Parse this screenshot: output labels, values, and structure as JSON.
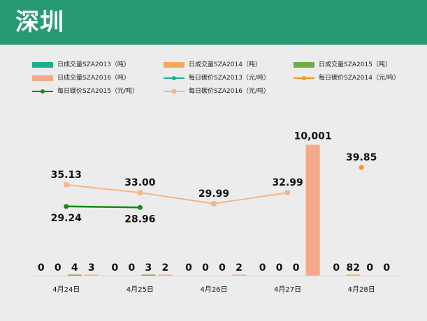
{
  "title": "深圳",
  "colors": {
    "header": "#279a74",
    "vol2013": "#1aaf8b",
    "vol2014": "#f5a85a",
    "vol2015": "#70ad47",
    "vol2016": "#f4a98a",
    "price2013": "#1aaf8b",
    "price2014": "#f7931e",
    "price2015": "#138a13",
    "price2016": "#f5b58a"
  },
  "legend": [
    {
      "label": "日成交量SZA2013（吨）",
      "kind": "bar",
      "color": "#1aaf8b"
    },
    {
      "label": "日成交量SZA2014（吨）",
      "kind": "bar",
      "color": "#f5a85a"
    },
    {
      "label": "日成交量SZA2015（吨）",
      "kind": "bar",
      "color": "#70ad47"
    },
    {
      "label": "日成交量SZA2016（吨）",
      "kind": "bar",
      "color": "#f4a98a"
    },
    {
      "label": "每日碳价SZA2013（元/吨）",
      "kind": "line-dot",
      "color": "#1aaf8b"
    },
    {
      "label": "每日碳价SZA2014（元/吨）",
      "kind": "line-dot",
      "color": "#f7931e"
    },
    {
      "label": "每日碳价SZA2015（元/吨）",
      "kind": "line-dot",
      "color": "#138a13"
    },
    {
      "label": "每日碳价SZA2016（元/吨）",
      "kind": "line-sq",
      "color": "#f5b58a"
    }
  ],
  "chart_data": {
    "type": "bar",
    "categories": [
      "4月24日",
      "4月25日",
      "4月26日",
      "4月27日",
      "4月28日"
    ],
    "series": [
      {
        "name": "日成交量SZA2013（吨）",
        "kind": "bar",
        "values": [
          0,
          0,
          0,
          0,
          0
        ],
        "labels": [
          "0",
          "0",
          "0",
          "0",
          "0"
        ]
      },
      {
        "name": "日成交量SZA2014（吨）",
        "kind": "bar",
        "values": [
          0,
          0,
          0,
          0,
          82
        ],
        "labels": [
          "0",
          "0",
          "0",
          "0",
          "82"
        ]
      },
      {
        "name": "日成交量SZA2015（吨）",
        "kind": "bar",
        "values": [
          4,
          3,
          0,
          0,
          0
        ],
        "labels": [
          "4",
          "3",
          "0",
          "0",
          "0"
        ]
      },
      {
        "name": "日成交量SZA2016（吨）",
        "kind": "bar",
        "values": [
          3,
          2,
          2,
          10001,
          0
        ],
        "labels": [
          "3",
          "2",
          "2",
          "10,001",
          "0"
        ]
      },
      {
        "name": "每日碳价SZA2013（元/吨）",
        "kind": "line",
        "values": [
          null,
          null,
          null,
          null,
          null
        ],
        "labels": []
      },
      {
        "name": "每日碳价SZA2014（元/吨）",
        "kind": "line",
        "values": [
          null,
          null,
          null,
          null,
          39.85
        ],
        "labels": [
          "",
          "",
          "",
          "",
          "39.85"
        ]
      },
      {
        "name": "每日碳价SZA2015（元/吨）",
        "kind": "line",
        "values": [
          29.24,
          28.96,
          null,
          null,
          null
        ],
        "labels": [
          "29.24",
          "28.96",
          "",
          "",
          ""
        ]
      },
      {
        "name": "每日碳价SZA2016（元/吨）",
        "kind": "line",
        "values": [
          35.13,
          33.0,
          29.99,
          32.99,
          null
        ],
        "labels": [
          "35.13",
          "33.00",
          "29.99",
          "32.99",
          ""
        ]
      }
    ],
    "ylim_volume": [
      0,
      12000
    ],
    "ylim_price": [
      0,
      55
    ],
    "grid": false,
    "legend_position": "top"
  }
}
